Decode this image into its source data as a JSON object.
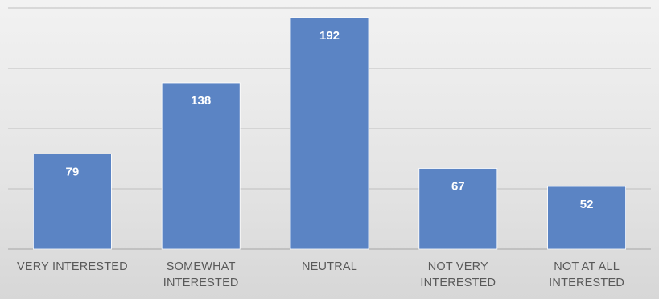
{
  "chart_data": {
    "type": "bar",
    "title": "",
    "xlabel": "",
    "ylabel": "",
    "categories": [
      "VERY INTERESTED",
      "SOMEWHAT INTERESTED",
      "NEUTRAL",
      "NOT VERY INTERESTED",
      "NOT AT ALL INTERESTED"
    ],
    "category_lines": [
      [
        "VERY INTERESTED"
      ],
      [
        "SOMEWHAT",
        "INTERESTED"
      ],
      [
        "NEUTRAL"
      ],
      [
        "NOT VERY",
        "INTERESTED"
      ],
      [
        "NOT AT ALL",
        "INTERESTED"
      ]
    ],
    "values": [
      79,
      138,
      192,
      67,
      52
    ],
    "data_labels": [
      "79",
      "138",
      "192",
      "67",
      "52"
    ],
    "ylim": [
      0,
      200
    ],
    "gridlines": [
      0,
      50,
      100,
      150,
      200
    ],
    "grid": true,
    "legend": "none",
    "bar_color": "#5b84c4",
    "label_color": "#ffffff"
  }
}
